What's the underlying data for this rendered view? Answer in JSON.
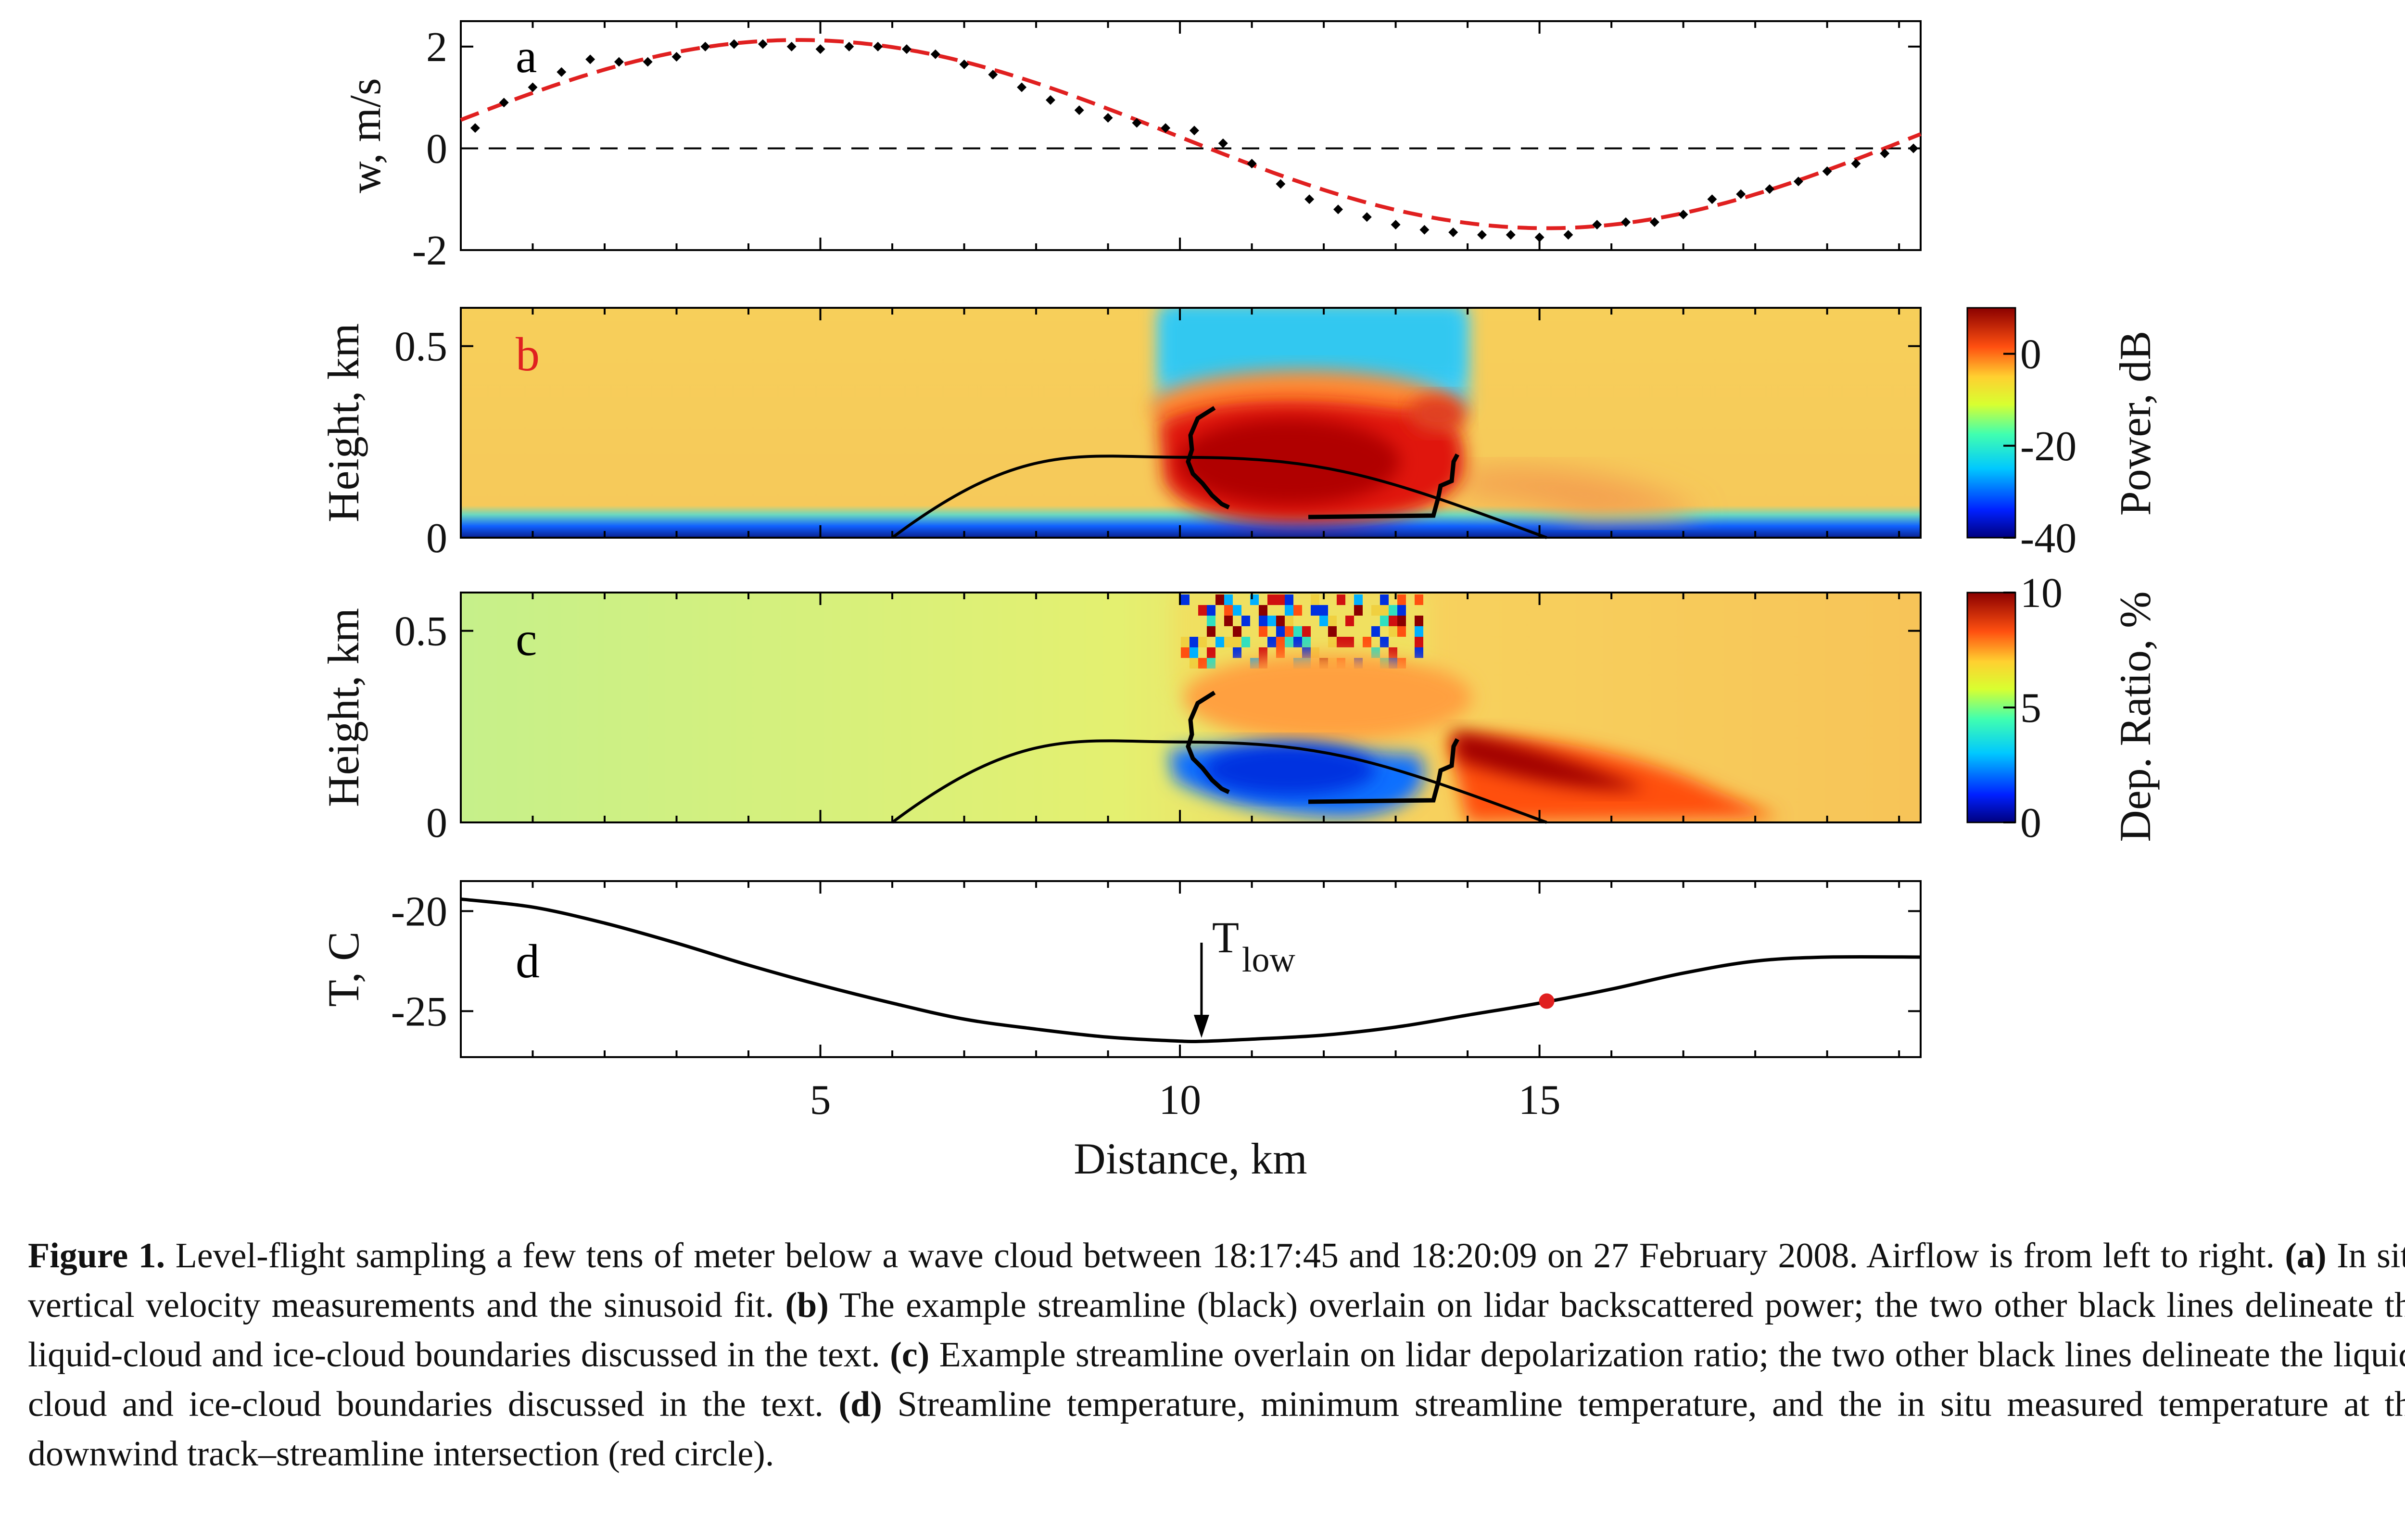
{
  "figure_caption": {
    "label": "Figure 1.",
    "text": "Level-flight sampling a few tens of meter below a wave cloud between 18:17:45 and 18:20:09 on 27 February 2008. Airflow is from left to right.",
    "a_tag": "(a)",
    "a_text": "In situ vertical velocity measurements and the sinusoid fit.",
    "b_tag": "(b)",
    "b_text": "The example streamline (black) overlain on lidar backscattered power; the two other black lines delineate the liquid-cloud and ice-cloud boundaries discussed in the text.",
    "c_tag": "(c)",
    "c_text": "Example streamline overlain on lidar depolarization ratio; the two other black lines delineate the liquid-cloud and ice-cloud boundaries discussed in the text.",
    "d_tag": "(d)",
    "d_text": "Streamline temperature, minimum streamline temperature, and the in situ measured temperature at the downwind track–streamline intersection (red circle)."
  },
  "colors": {
    "measurement": "#000000",
    "fit": "#e02020",
    "streamline": "#000000",
    "red_circle": "#e02020",
    "panel_b_letter": "#e02020"
  },
  "chart_data": [
    {
      "panel": "a",
      "type": "scatter",
      "panel_label": "a",
      "ylabel": "w, m/s",
      "xlim": [
        0,
        20.3
      ],
      "ylim": [
        -2,
        2.5
      ],
      "yticks": [
        "2",
        "0",
        "-2"
      ],
      "ytick_values": [
        2,
        0,
        -2
      ],
      "zero_line": "dashed",
      "series": [
        {
          "kind": "measurements",
          "x": [
            0.2,
            0.6,
            1.0,
            1.4,
            1.8,
            2.2,
            2.6,
            3.0,
            3.4,
            3.8,
            4.2,
            4.6,
            5.0,
            5.4,
            5.8,
            6.2,
            6.6,
            7.0,
            7.4,
            7.8,
            8.2,
            8.6,
            9.0,
            9.4,
            9.8,
            10.2,
            10.6,
            11.0,
            11.4,
            11.8,
            12.2,
            12.6,
            13.0,
            13.4,
            13.8,
            14.2,
            14.6,
            15.0,
            15.4,
            15.8,
            16.2,
            16.6,
            17.0,
            17.4,
            17.8,
            18.2,
            18.6,
            19.0,
            19.4,
            19.8,
            20.2
          ],
          "y": [
            0.4,
            0.9,
            1.2,
            1.5,
            1.75,
            1.7,
            1.7,
            1.8,
            2.0,
            2.05,
            2.05,
            2.0,
            1.95,
            2.0,
            2.0,
            1.95,
            1.85,
            1.65,
            1.45,
            1.2,
            0.95,
            0.75,
            0.6,
            0.5,
            0.4,
            0.35,
            0.1,
            -0.3,
            -0.7,
            -1.0,
            -1.2,
            -1.35,
            -1.5,
            -1.6,
            -1.65,
            -1.7,
            -1.7,
            -1.75,
            -1.7,
            -1.5,
            -1.45,
            -1.45,
            -1.3,
            -1.0,
            -0.9,
            -0.8,
            -0.65,
            -0.45,
            -0.3,
            -0.1,
            0.0
          ]
        },
        {
          "kind": "sinusoid_fit",
          "amplitude": 1.85,
          "offset": 0.28,
          "peak_x": 4.7,
          "wavelength": 20.8,
          "style": "dashed"
        }
      ]
    },
    {
      "panel": "b",
      "type": "heatmap",
      "panel_label": "b",
      "ylabel": "Height, km",
      "xlim": [
        0,
        20.3
      ],
      "ylim": [
        0,
        0.6
      ],
      "yticks": [
        "0.5",
        "0"
      ],
      "ytick_values": [
        0.5,
        0
      ],
      "colorbar": {
        "label": "Power, dB",
        "ticks": [
          "0",
          "-20",
          "-40"
        ],
        "tick_values": [
          0,
          -20,
          -40
        ],
        "range": [
          -40,
          10
        ]
      },
      "streamline": {
        "x_start": 6.0,
        "x_peak": 10.0,
        "x_end": 15.1,
        "peak_height": 0.21
      }
    },
    {
      "panel": "c",
      "type": "heatmap",
      "panel_label": "c",
      "ylabel": "Height, km",
      "xlim": [
        0,
        20.3
      ],
      "ylim": [
        0,
        0.6
      ],
      "yticks": [
        "0.5",
        "0"
      ],
      "ytick_values": [
        0.5,
        0
      ],
      "colorbar": {
        "label": "Dep. Ratio, %",
        "ticks": [
          "10",
          "5",
          "0"
        ],
        "tick_values": [
          10,
          5,
          0
        ],
        "range": [
          0,
          10
        ]
      },
      "streamline": {
        "x_start": 6.0,
        "x_peak": 10.0,
        "x_end": 15.1,
        "peak_height": 0.21
      }
    },
    {
      "panel": "d",
      "type": "line",
      "panel_label": "d",
      "ylabel": "T, C",
      "xlabel": "Distance, km",
      "xlim": [
        0,
        20.3
      ],
      "ylim": [
        -27.3,
        -18.5
      ],
      "yticks": [
        "-20",
        "-25"
      ],
      "ytick_values": [
        -20,
        -25
      ],
      "xticks": [
        "5",
        "10",
        "15"
      ],
      "xtick_values": [
        5,
        10,
        15
      ],
      "annotation": {
        "text_main": "T",
        "text_sub": "low",
        "x": 10.3
      },
      "series": [
        {
          "kind": "streamline_temperature",
          "x": [
            0,
            1,
            2,
            3,
            4,
            5,
            6,
            7,
            8,
            9,
            10,
            10.4,
            11,
            12,
            13,
            14,
            15,
            16,
            17,
            18,
            19,
            20.3
          ],
          "y": [
            -19.4,
            -19.8,
            -20.6,
            -21.6,
            -22.7,
            -23.7,
            -24.6,
            -25.4,
            -25.9,
            -26.3,
            -26.5,
            -26.5,
            -26.4,
            -26.2,
            -25.8,
            -25.2,
            -24.6,
            -23.9,
            -23.1,
            -22.5,
            -22.3,
            -22.3
          ]
        },
        {
          "kind": "measured_point",
          "x": 15.1,
          "y": -24.5
        }
      ]
    }
  ]
}
